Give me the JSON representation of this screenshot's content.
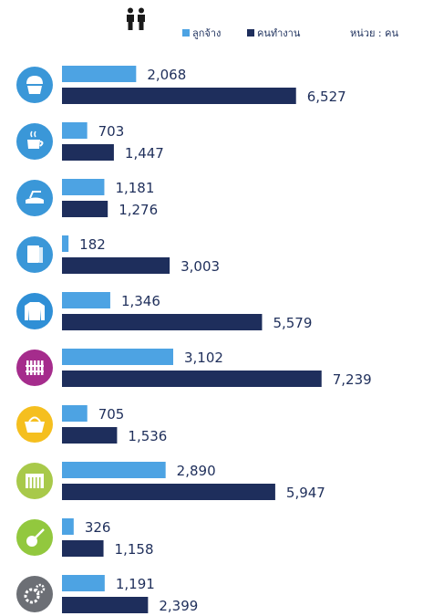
{
  "legend": {
    "employee_label": "ลูกจ้าง",
    "worker_label": "คนทำงาน",
    "unit_label": "หน่วย : คน"
  },
  "colors": {
    "employee": "#4da3e3",
    "worker": "#1e2e5c"
  },
  "chart_data": {
    "type": "bar",
    "orientation": "horizontal",
    "categories": [
      "bakery",
      "coffee",
      "iron",
      "towel",
      "shirt",
      "fence",
      "basket",
      "fabric",
      "guitar",
      "gears"
    ],
    "series": [
      {
        "name": "ลูกจ้าง",
        "values": [
          2068,
          703,
          1181,
          182,
          1346,
          3102,
          705,
          2890,
          326,
          1191
        ]
      },
      {
        "name": "คนทำงาน",
        "values": [
          6527,
          1447,
          1276,
          3003,
          5579,
          7239,
          1536,
          5947,
          1158,
          2399
        ]
      }
    ],
    "value_labels": [
      [
        "2,068",
        "703",
        "1,181",
        "182",
        "1,346",
        "3,102",
        "705",
        "2,890",
        "326",
        "1,191"
      ],
      [
        "6,527",
        "1,447",
        "1,276",
        "3,003",
        "5,579",
        "7,239",
        "1,536",
        "5,947",
        "1,158",
        "2,399"
      ]
    ],
    "category_icons": [
      "cupcake-icon",
      "coffee-cup-icon",
      "iron-icon",
      "towel-icon",
      "shirt-icon",
      "fence-icon",
      "basket-icon",
      "fabric-icon",
      "guitar-icon",
      "gears-icon"
    ],
    "icon_colors": [
      "#3a97d8",
      "#3a97d8",
      "#3a97d8",
      "#3a97d8",
      "#2f8fd6",
      "#a52c8c",
      "#f5bf1f",
      "#a8c94a",
      "#92c83e",
      "#6c6f75"
    ],
    "xlim": [
      0,
      7500
    ],
    "legend_position": "top"
  }
}
